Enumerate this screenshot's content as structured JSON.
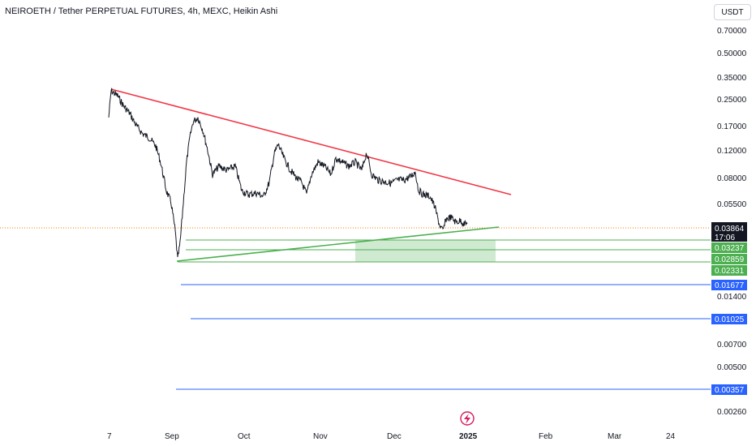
{
  "header": {
    "title": "NEIROETH / Tether PERPETUAL FUTURES, 4h, MEXC, Heikin Ashi",
    "currency_button": "USDT"
  },
  "price_axis": {
    "labels": [
      "0.70000",
      "0.50000",
      "0.35000",
      "0.25000",
      "0.17000",
      "0.12000",
      "0.08000",
      "0.05500",
      "0.01400",
      "0.00700",
      "0.00500",
      "0.00260"
    ]
  },
  "time_axis": {
    "labels": [
      "7",
      "Sep",
      "Oct",
      "Nov",
      "Dec",
      "2025",
      "Feb",
      "Mar",
      "24"
    ]
  },
  "price_tags": [
    {
      "label": "0.03864",
      "sub": "17:06",
      "color": "#131722"
    },
    {
      "label": "0.03237",
      "color": "#4caf50"
    },
    {
      "label": "0.02859",
      "color": "#4caf50"
    },
    {
      "label": "0.02331",
      "color": "#4caf50"
    },
    {
      "label": "0.01677",
      "color": "#2962ff"
    },
    {
      "label": "0.01025",
      "color": "#2962ff"
    },
    {
      "label": "0.00357",
      "color": "#2962ff"
    }
  ],
  "colors": {
    "resistance_line": "#f23645",
    "support_line": "#4caf50",
    "zone_fill": "#c8e6c9",
    "level_line": "#2962ff",
    "current_price_line": "#f57c00"
  },
  "icons": {
    "timeline_marker": "lightning-icon"
  }
}
